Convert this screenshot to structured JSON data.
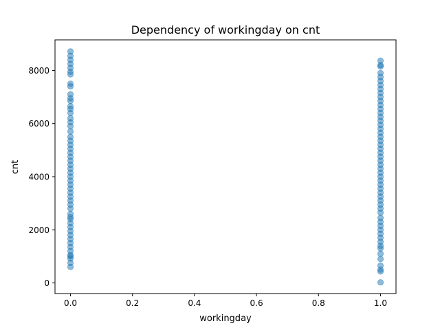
{
  "chart_data": {
    "type": "scatter",
    "title": "Dependency of workingday on cnt",
    "xlabel": "workingday",
    "ylabel": "cnt",
    "xlim": [
      -0.05,
      1.05
    ],
    "ylim": [
      -400,
      9150
    ],
    "xticks": [
      0.0,
      0.2,
      0.4,
      0.6,
      0.8,
      1.0
    ],
    "xtick_labels": [
      "0.0",
      "0.2",
      "0.4",
      "0.6",
      "0.8",
      "1.0"
    ],
    "yticks": [
      0,
      2000,
      4000,
      6000,
      8000
    ],
    "ytick_labels": [
      "0",
      "2000",
      "4000",
      "6000",
      "8000"
    ],
    "grid": false,
    "series": [
      {
        "color": "#1f77b4",
        "alpha": 0.5,
        "points": [
          {
            "x": 0,
            "y": 605
          },
          {
            "x": 0,
            "y": 754
          },
          {
            "x": 0,
            "y": 920
          },
          {
            "x": 0,
            "y": 1000
          },
          {
            "x": 0,
            "y": 1050
          },
          {
            "x": 0,
            "y": 1200
          },
          {
            "x": 0,
            "y": 1350
          },
          {
            "x": 0,
            "y": 1500
          },
          {
            "x": 0,
            "y": 1650
          },
          {
            "x": 0,
            "y": 1800
          },
          {
            "x": 0,
            "y": 1950
          },
          {
            "x": 0,
            "y": 2100
          },
          {
            "x": 0,
            "y": 2250
          },
          {
            "x": 0,
            "y": 2400
          },
          {
            "x": 0,
            "y": 2480
          },
          {
            "x": 0,
            "y": 2600
          },
          {
            "x": 0,
            "y": 2800
          },
          {
            "x": 0,
            "y": 2950
          },
          {
            "x": 0,
            "y": 3100
          },
          {
            "x": 0,
            "y": 3250
          },
          {
            "x": 0,
            "y": 3400
          },
          {
            "x": 0,
            "y": 3550
          },
          {
            "x": 0,
            "y": 3700
          },
          {
            "x": 0,
            "y": 3850
          },
          {
            "x": 0,
            "y": 4000
          },
          {
            "x": 0,
            "y": 4150
          },
          {
            "x": 0,
            "y": 4300
          },
          {
            "x": 0,
            "y": 4450
          },
          {
            "x": 0,
            "y": 4600
          },
          {
            "x": 0,
            "y": 4750
          },
          {
            "x": 0,
            "y": 4900
          },
          {
            "x": 0,
            "y": 5050
          },
          {
            "x": 0,
            "y": 5200
          },
          {
            "x": 0,
            "y": 5350
          },
          {
            "x": 0,
            "y": 5500
          },
          {
            "x": 0,
            "y": 5700
          },
          {
            "x": 0,
            "y": 5900
          },
          {
            "x": 0,
            "y": 6050
          },
          {
            "x": 0,
            "y": 6200
          },
          {
            "x": 0,
            "y": 6400
          },
          {
            "x": 0,
            "y": 6550
          },
          {
            "x": 0,
            "y": 6650
          },
          {
            "x": 0,
            "y": 6850
          },
          {
            "x": 0,
            "y": 6950
          },
          {
            "x": 0,
            "y": 7100
          },
          {
            "x": 0,
            "y": 7400
          },
          {
            "x": 0,
            "y": 7500
          },
          {
            "x": 0,
            "y": 7850
          },
          {
            "x": 0,
            "y": 7950
          },
          {
            "x": 0,
            "y": 8100
          },
          {
            "x": 0,
            "y": 8250
          },
          {
            "x": 0,
            "y": 8400
          },
          {
            "x": 0,
            "y": 8550
          },
          {
            "x": 0,
            "y": 8714
          },
          {
            "x": 1,
            "y": 22
          },
          {
            "x": 1,
            "y": 431
          },
          {
            "x": 1,
            "y": 500
          },
          {
            "x": 1,
            "y": 650
          },
          {
            "x": 1,
            "y": 900
          },
          {
            "x": 1,
            "y": 1100
          },
          {
            "x": 1,
            "y": 1300
          },
          {
            "x": 1,
            "y": 1400
          },
          {
            "x": 1,
            "y": 1550
          },
          {
            "x": 1,
            "y": 1700
          },
          {
            "x": 1,
            "y": 1850
          },
          {
            "x": 1,
            "y": 2000
          },
          {
            "x": 1,
            "y": 2150
          },
          {
            "x": 1,
            "y": 2300
          },
          {
            "x": 1,
            "y": 2450
          },
          {
            "x": 1,
            "y": 2650
          },
          {
            "x": 1,
            "y": 2800
          },
          {
            "x": 1,
            "y": 2950
          },
          {
            "x": 1,
            "y": 3100
          },
          {
            "x": 1,
            "y": 3250
          },
          {
            "x": 1,
            "y": 3400
          },
          {
            "x": 1,
            "y": 3550
          },
          {
            "x": 1,
            "y": 3700
          },
          {
            "x": 1,
            "y": 3850
          },
          {
            "x": 1,
            "y": 4000
          },
          {
            "x": 1,
            "y": 4150
          },
          {
            "x": 1,
            "y": 4300
          },
          {
            "x": 1,
            "y": 4450
          },
          {
            "x": 1,
            "y": 4600
          },
          {
            "x": 1,
            "y": 4750
          },
          {
            "x": 1,
            "y": 4900
          },
          {
            "x": 1,
            "y": 5050
          },
          {
            "x": 1,
            "y": 5200
          },
          {
            "x": 1,
            "y": 5350
          },
          {
            "x": 1,
            "y": 5500
          },
          {
            "x": 1,
            "y": 5650
          },
          {
            "x": 1,
            "y": 5800
          },
          {
            "x": 1,
            "y": 5950
          },
          {
            "x": 1,
            "y": 6100
          },
          {
            "x": 1,
            "y": 6250
          },
          {
            "x": 1,
            "y": 6400
          },
          {
            "x": 1,
            "y": 6550
          },
          {
            "x": 1,
            "y": 6700
          },
          {
            "x": 1,
            "y": 6850
          },
          {
            "x": 1,
            "y": 7000
          },
          {
            "x": 1,
            "y": 7150
          },
          {
            "x": 1,
            "y": 7300
          },
          {
            "x": 1,
            "y": 7450
          },
          {
            "x": 1,
            "y": 7600
          },
          {
            "x": 1,
            "y": 7750
          },
          {
            "x": 1,
            "y": 7900
          },
          {
            "x": 1,
            "y": 8150
          },
          {
            "x": 1,
            "y": 8200
          },
          {
            "x": 1,
            "y": 8362
          }
        ]
      }
    ]
  }
}
